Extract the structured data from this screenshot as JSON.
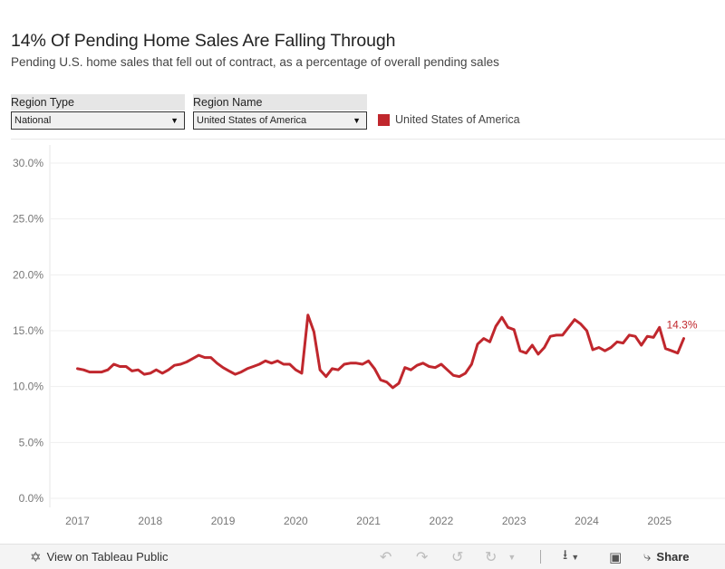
{
  "title": "14% Of Pending Home Sales Are Falling Through",
  "subtitle": "Pending U.S. home sales that fell out of contract, as a percentage of overall pending sales",
  "filters": [
    {
      "label": "Region Type",
      "value": "National"
    },
    {
      "label": "Region Name",
      "value": "United States of America"
    }
  ],
  "legend": {
    "label": "United States of America",
    "color": "#c0272d"
  },
  "toolbar": {
    "view_label": "View on Tableau Public",
    "share_label": "Share"
  },
  "chart_data": {
    "type": "line",
    "title": "14% Of Pending Home Sales Are Falling Through",
    "xlabel": "",
    "ylabel": "",
    "ylim": [
      0,
      30
    ],
    "y_ticks": [
      "0.0%",
      "5.0%",
      "10.0%",
      "15.0%",
      "20.0%",
      "25.0%",
      "30.0%"
    ],
    "y_tick_values": [
      0,
      5,
      10,
      15,
      20,
      25,
      30
    ],
    "x_ticks": [
      "2017",
      "2018",
      "2019",
      "2020",
      "2021",
      "2022",
      "2023",
      "2024",
      "2025"
    ],
    "x_tick_values": [
      2017,
      2018,
      2019,
      2020,
      2021,
      2022,
      2023,
      2024,
      2025
    ],
    "xlim": [
      2016.62,
      2025.9
    ],
    "grid": "horizontal",
    "end_label": "14.3%",
    "series": [
      {
        "name": "United States of America",
        "color": "#c0272d",
        "points": [
          [
            2017.0,
            11.6
          ],
          [
            2017.083,
            11.5
          ],
          [
            2017.167,
            11.3
          ],
          [
            2017.25,
            11.3
          ],
          [
            2017.333,
            11.3
          ],
          [
            2017.417,
            11.5
          ],
          [
            2017.5,
            12.0
          ],
          [
            2017.583,
            11.8
          ],
          [
            2017.667,
            11.8
          ],
          [
            2017.75,
            11.4
          ],
          [
            2017.833,
            11.5
          ],
          [
            2017.917,
            11.1
          ],
          [
            2018.0,
            11.2
          ],
          [
            2018.083,
            11.5
          ],
          [
            2018.167,
            11.2
          ],
          [
            2018.25,
            11.5
          ],
          [
            2018.333,
            11.9
          ],
          [
            2018.417,
            12.0
          ],
          [
            2018.5,
            12.2
          ],
          [
            2018.583,
            12.5
          ],
          [
            2018.667,
            12.8
          ],
          [
            2018.75,
            12.6
          ],
          [
            2018.833,
            12.6
          ],
          [
            2018.917,
            12.1
          ],
          [
            2019.0,
            11.7
          ],
          [
            2019.083,
            11.4
          ],
          [
            2019.167,
            11.1
          ],
          [
            2019.25,
            11.3
          ],
          [
            2019.333,
            11.6
          ],
          [
            2019.417,
            11.8
          ],
          [
            2019.5,
            12.0
          ],
          [
            2019.583,
            12.3
          ],
          [
            2019.667,
            12.1
          ],
          [
            2019.75,
            12.3
          ],
          [
            2019.833,
            12.0
          ],
          [
            2019.917,
            12.0
          ],
          [
            2020.0,
            11.5
          ],
          [
            2020.083,
            11.2
          ],
          [
            2020.167,
            16.4
          ],
          [
            2020.25,
            14.9
          ],
          [
            2020.333,
            11.5
          ],
          [
            2020.417,
            10.9
          ],
          [
            2020.5,
            11.6
          ],
          [
            2020.583,
            11.5
          ],
          [
            2020.667,
            12.0
          ],
          [
            2020.75,
            12.1
          ],
          [
            2020.833,
            12.1
          ],
          [
            2020.917,
            12.0
          ],
          [
            2021.0,
            12.3
          ],
          [
            2021.083,
            11.6
          ],
          [
            2021.167,
            10.6
          ],
          [
            2021.25,
            10.4
          ],
          [
            2021.333,
            9.9
          ],
          [
            2021.417,
            10.3
          ],
          [
            2021.5,
            11.7
          ],
          [
            2021.583,
            11.5
          ],
          [
            2021.667,
            11.9
          ],
          [
            2021.75,
            12.1
          ],
          [
            2021.833,
            11.8
          ],
          [
            2021.917,
            11.7
          ],
          [
            2022.0,
            12.0
          ],
          [
            2022.083,
            11.5
          ],
          [
            2022.167,
            11.0
          ],
          [
            2022.25,
            10.9
          ],
          [
            2022.333,
            11.2
          ],
          [
            2022.417,
            12.0
          ],
          [
            2022.5,
            13.8
          ],
          [
            2022.583,
            14.3
          ],
          [
            2022.667,
            14.0
          ],
          [
            2022.75,
            15.4
          ],
          [
            2022.833,
            16.2
          ],
          [
            2022.917,
            15.3
          ],
          [
            2023.0,
            15.1
          ],
          [
            2023.083,
            13.2
          ],
          [
            2023.167,
            13.0
          ],
          [
            2023.25,
            13.7
          ],
          [
            2023.333,
            12.9
          ],
          [
            2023.417,
            13.5
          ],
          [
            2023.5,
            14.5
          ],
          [
            2023.583,
            14.6
          ],
          [
            2023.667,
            14.6
          ],
          [
            2023.75,
            15.3
          ],
          [
            2023.833,
            16.0
          ],
          [
            2023.917,
            15.6
          ],
          [
            2024.0,
            15.0
          ],
          [
            2024.083,
            13.3
          ],
          [
            2024.167,
            13.5
          ],
          [
            2024.25,
            13.2
          ],
          [
            2024.333,
            13.5
          ],
          [
            2024.417,
            14.0
          ],
          [
            2024.5,
            13.9
          ],
          [
            2024.583,
            14.6
          ],
          [
            2024.667,
            14.5
          ],
          [
            2024.75,
            13.7
          ],
          [
            2024.833,
            14.5
          ],
          [
            2024.917,
            14.4
          ],
          [
            2025.0,
            15.3
          ],
          [
            2025.083,
            13.4
          ],
          [
            2025.167,
            13.2
          ],
          [
            2025.25,
            13.0
          ],
          [
            2025.333,
            14.3
          ]
        ]
      }
    ]
  }
}
